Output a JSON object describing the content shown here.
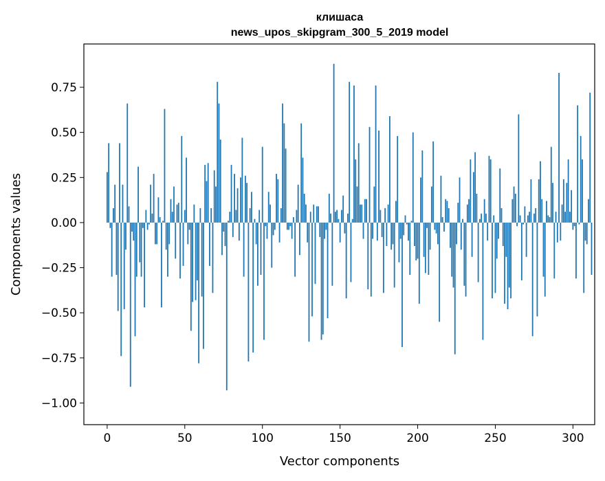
{
  "chart_data": {
    "type": "bar",
    "title": "клишаса",
    "subtitle": "news_upos_skipgram_300_5_2019 model",
    "xlabel": "Vector components",
    "ylabel": "Components values",
    "xlim": [
      -15,
      314
    ],
    "ylim": [
      -1.12,
      0.99
    ],
    "x_ticks": [
      0,
      50,
      100,
      150,
      200,
      250,
      300
    ],
    "y_ticks": [
      -1.0,
      -0.75,
      -0.5,
      -0.25,
      0.0,
      0.25,
      0.5,
      0.75
    ],
    "y_tick_labels": [
      "−1.00",
      "−0.75",
      "−0.50",
      "−0.25",
      "0.00",
      "0.25",
      "0.50",
      "0.75"
    ],
    "bar_color": "#1f77b4",
    "values": [
      0.28,
      0.44,
      -0.03,
      -0.3,
      0.08,
      0.21,
      -0.29,
      -0.49,
      0.44,
      -0.74,
      0.21,
      -0.48,
      -0.15,
      0.66,
      0.09,
      -0.91,
      -0.05,
      -0.1,
      -0.63,
      -0.3,
      0.31,
      -0.22,
      -0.3,
      -0.03,
      -0.47,
      0.07,
      -0.04,
      -0.01,
      0.21,
      0.05,
      0.27,
      -0.12,
      -0.12,
      0.14,
      0.03,
      -0.47,
      0.01,
      0.63,
      -0.15,
      -0.3,
      -0.12,
      0.13,
      0.06,
      0.2,
      -0.2,
      0.1,
      0.11,
      -0.31,
      0.48,
      -0.24,
      0.07,
      0.36,
      -0.12,
      -0.04,
      -0.6,
      -0.44,
      0.1,
      -0.43,
      -0.32,
      -0.78,
      0.08,
      -0.41,
      -0.7,
      0.32,
      0.23,
      0.33,
      -0.24,
      0.08,
      -0.39,
      0.29,
      0.2,
      0.78,
      0.66,
      0.46,
      -0.18,
      -0.05,
      -0.13,
      -0.93,
      0.01,
      0.06,
      0.32,
      -0.08,
      0.27,
      0.07,
      0.19,
      -0.1,
      0.25,
      0.47,
      -0.3,
      0.26,
      0.22,
      -0.77,
      0.08,
      0.17,
      -0.72,
      0.02,
      -0.12,
      -0.35,
      0.07,
      -0.29,
      0.42,
      -0.65,
      -0.02,
      -0.09,
      0.17,
      0.1,
      -0.25,
      -0.07,
      -0.04,
      0.27,
      0.24,
      -0.11,
      0.08,
      0.66,
      0.55,
      0.41,
      -0.04,
      -0.04,
      -0.02,
      -0.09,
      0.03,
      -0.3,
      0.07,
      0.21,
      -0.18,
      0.55,
      0.36,
      0.16,
      0.1,
      -0.11,
      -0.66,
      0.06,
      -0.52,
      0.1,
      -0.34,
      0.09,
      0.09,
      -0.08,
      -0.65,
      -0.62,
      -0.09,
      -0.04,
      -0.53,
      0.16,
      0.05,
      -0.35,
      0.88,
      0.06,
      0.07,
      0.02,
      -0.11,
      0.07,
      0.15,
      -0.06,
      -0.42,
      0.05,
      0.78,
      -0.33,
      0.02,
      0.76,
      0.35,
      0.2,
      0.44,
      0.1,
      0.1,
      -0.09,
      0.13,
      0.13,
      -0.37,
      0.53,
      -0.41,
      -0.09,
      0.2,
      0.76,
      -0.1,
      0.51,
      0.07,
      -0.08,
      -0.39,
      0.08,
      -0.13,
      0.1,
      0.59,
      -0.15,
      -0.12,
      -0.36,
      0.12,
      0.48,
      -0.22,
      -0.09,
      -0.69,
      -0.07,
      0.04,
      -0.01,
      -0.1,
      -0.29,
      0.01,
      0.5,
      -0.13,
      -0.21,
      -0.2,
      -0.45,
      0.25,
      0.4,
      -0.19,
      -0.28,
      -0.03,
      -0.29,
      -0.15,
      0.2,
      0.45,
      -0.04,
      -0.06,
      -0.12,
      -0.55,
      0.26,
      0.03,
      -0.05,
      0.13,
      0.12,
      0.08,
      -0.14,
      -0.3,
      -0.36,
      -0.73,
      -0.12,
      0.11,
      0.25,
      -0.15,
      0.02,
      -0.35,
      -0.41,
      0.1,
      0.13,
      0.35,
      -0.19,
      0.28,
      0.39,
      0.16,
      -0.33,
      0.02,
      0.05,
      -0.65,
      0.13,
      0.05,
      -0.1,
      0.37,
      0.35,
      -0.42,
      0.04,
      -0.39,
      -0.2,
      -0.09,
      0.3,
      0.08,
      -0.13,
      -0.45,
      -0.19,
      -0.48,
      -0.36,
      -0.42,
      0.13,
      0.2,
      0.16,
      -0.02,
      0.6,
      0.04,
      -0.32,
      -0.01,
      0.09,
      -0.19,
      0.04,
      0.06,
      0.24,
      -0.63,
      0.05,
      0.08,
      -0.52,
      0.24,
      0.34,
      0.13,
      -0.3,
      -0.41,
      0.12,
      0.04,
      0.03,
      0.42,
      0.22,
      -0.31,
      0.06,
      -0.11,
      0.83,
      -0.1,
      0.1,
      0.24,
      0.06,
      0.22,
      0.35,
      0.06,
      0.18,
      -0.04,
      -0.02,
      -0.31,
      0.65,
      -0.01,
      0.48,
      0.35,
      -0.39,
      -0.1,
      -0.12,
      0.13,
      0.72,
      -0.29
    ]
  }
}
